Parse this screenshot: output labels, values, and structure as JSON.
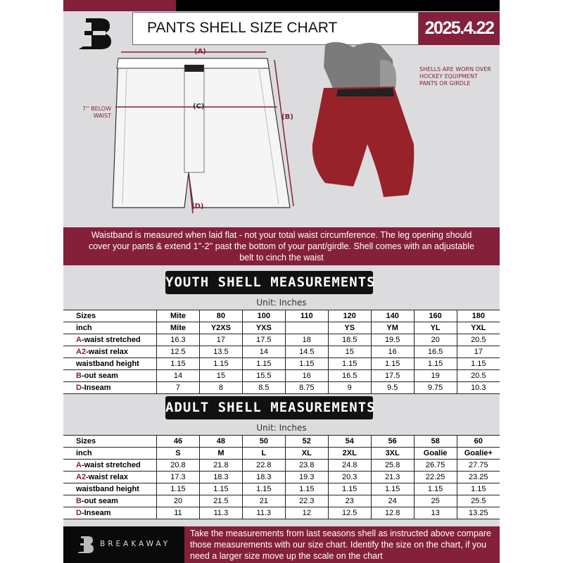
{
  "header": {
    "title": "PANTS SHELL SIZE CHART",
    "date": "2025.4.22"
  },
  "brand": {
    "name": "BREAKAWAY",
    "logo_letter": "B"
  },
  "diagram": {
    "label_a": "(A)",
    "label_b": "(B)",
    "label_c": "(C)",
    "label_d": "(D)",
    "below_waist": "7'' BELOW WAIST",
    "shell_note": "SHELLS ARE WORN OVER HOCKEY EQUIPMENT PANTS OR GIRDLE"
  },
  "info_band": "Waistband is measured when laid flat - not your total waist circumference. The leg opening should cover your pants & extend 1''-2'' past the bottom of your pant/girdle. Shell comes with an adjustable belt to cinch the waist",
  "colors": {
    "accent": "#85203a",
    "dark": "#111111",
    "background": "#dcdcdf"
  },
  "youth": {
    "title": "YOUTH SHELL MEASUREMENTS",
    "unit": "Unit: Inches",
    "rows": [
      {
        "prefix": "",
        "label": "Sizes",
        "values": [
          "Mite",
          "80",
          "100",
          "110",
          "120",
          "140",
          "160",
          "180"
        ]
      },
      {
        "prefix": "",
        "label": "inch",
        "values": [
          "Mite",
          "Y2XS",
          "YXS",
          "",
          "YS",
          "YM",
          "YL",
          "YXL"
        ]
      },
      {
        "prefix": "A",
        "label": "-waist stretched",
        "values": [
          "16.3",
          "17",
          "17.5",
          "18",
          "18.5",
          "19.5",
          "20",
          "20.5"
        ]
      },
      {
        "prefix": "A2",
        "label": "-waist relax",
        "values": [
          "12.5",
          "13.5",
          "14",
          "14.5",
          "15",
          "16",
          "16.5",
          "17"
        ]
      },
      {
        "prefix": "",
        "label": "waistband height",
        "values": [
          "1.15",
          "1.15",
          "1.15",
          "1.15",
          "1.15",
          "1.15",
          "1.15",
          "1.15"
        ]
      },
      {
        "prefix": "B",
        "label": "-out seam",
        "values": [
          "14",
          "15",
          "15.5",
          "16",
          "16.5",
          "17.5",
          "19",
          "20.5"
        ]
      },
      {
        "prefix": "D",
        "label": "-Inseam",
        "values": [
          "7",
          "8",
          "8.5",
          "8.75",
          "9",
          "9.5",
          "9.75",
          "10.3"
        ]
      }
    ]
  },
  "adult": {
    "title": "ADULT SHELL MEASUREMENTS",
    "unit": "Unit: Inches",
    "rows": [
      {
        "prefix": "",
        "label": "Sizes",
        "values": [
          "46",
          "48",
          "50",
          "52",
          "54",
          "56",
          "58",
          "60"
        ]
      },
      {
        "prefix": "",
        "label": "inch",
        "values": [
          "S",
          "M",
          "L",
          "XL",
          "2XL",
          "3XL",
          "Goalie",
          "Goalie+"
        ]
      },
      {
        "prefix": "A",
        "label": "-waist stretched",
        "values": [
          "20.8",
          "21.8",
          "22.8",
          "23.8",
          "24.8",
          "25.8",
          "26.75",
          "27.75"
        ]
      },
      {
        "prefix": "A2",
        "label": "-waist relax",
        "values": [
          "17.3",
          "18.3",
          "18.3",
          "19.3",
          "20.3",
          "21.3",
          "22.25",
          "23.25"
        ]
      },
      {
        "prefix": "",
        "label": "waistband height",
        "values": [
          "1.15",
          "1.15",
          "1.15",
          "1.15",
          "1.15",
          "1.15",
          "1.15",
          "1.15"
        ]
      },
      {
        "prefix": "B",
        "label": "-out seam",
        "values": [
          "20",
          "21.5",
          "21",
          "22.3",
          "23",
          "24",
          "25",
          "25.5"
        ]
      },
      {
        "prefix": "D",
        "label": "-Inseam",
        "values": [
          "11",
          "11.3",
          "11.3",
          "12",
          "12.5",
          "12.8",
          "13",
          "13.25"
        ]
      }
    ]
  },
  "footer_text": "Take the measurements from last seasons shell as instructed above compare those measurements  with our size chart. Identify the size on the chart, if you need a larger size move up the scale on the chart"
}
